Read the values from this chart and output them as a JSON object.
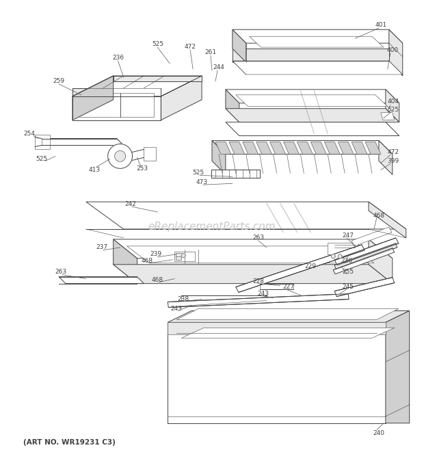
{
  "bg_color": "#ffffff",
  "lc": "#404040",
  "lw": 0.7,
  "lw_thin": 0.4,
  "watermark": "eReplacementParts.com",
  "watermark_color": "#c8c8c8",
  "footer": "(ART NO. WR19231 C3)",
  "fs": 6.5,
  "figsize": [
    6.2,
    6.61
  ],
  "dpi": 100
}
